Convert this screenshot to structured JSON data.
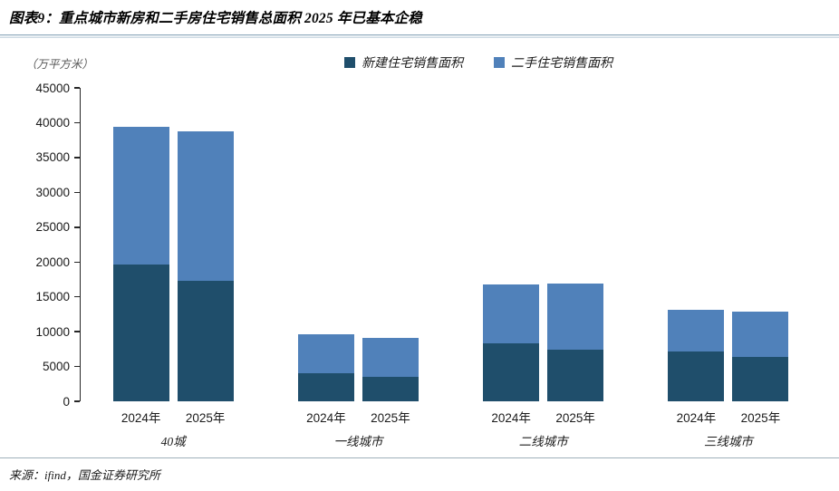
{
  "header": {
    "title": "图表9：重点城市新房和二手房住宅销售总面积 2025 年已基本企稳"
  },
  "footer": {
    "source": "来源：ifind，国金证券研究所"
  },
  "colors": {
    "new_build": "#1F4E6B",
    "second_hand": "#5081BA",
    "axis": "#262626",
    "divider": "#8FA9BD",
    "unit_text": "#595959"
  },
  "chart_data": {
    "type": "bar",
    "stacked": true,
    "title": "重点城市新房和二手房住宅销售总面积 2025 年已基本企稳",
    "unit_label": "（万平方米）",
    "groups": [
      "40城",
      "一线城市",
      "二线城市",
      "三线城市"
    ],
    "x_tick_labels": [
      "2024年",
      "2025年"
    ],
    "series": [
      {
        "name": "新建住宅销售面积",
        "color": "#1F4E6B",
        "values": [
          [
            19600,
            17300
          ],
          [
            4000,
            3500
          ],
          [
            8300,
            7400
          ],
          [
            7100,
            6400
          ]
        ]
      },
      {
        "name": "二手住宅销售面积",
        "color": "#5081BA",
        "values": [
          [
            19800,
            21500
          ],
          [
            5600,
            5600
          ],
          [
            8500,
            9550
          ],
          [
            6000,
            6500
          ]
        ]
      }
    ],
    "totals": [
      [
        39400,
        38800
      ],
      [
        9600,
        9100
      ],
      [
        16800,
        16950
      ],
      [
        13100,
        12900
      ]
    ],
    "ylim": [
      0,
      45000
    ],
    "y_ticks": [
      0,
      5000,
      10000,
      15000,
      20000,
      25000,
      30000,
      35000,
      40000,
      45000
    ],
    "grid": "off",
    "legend_position": "top"
  }
}
